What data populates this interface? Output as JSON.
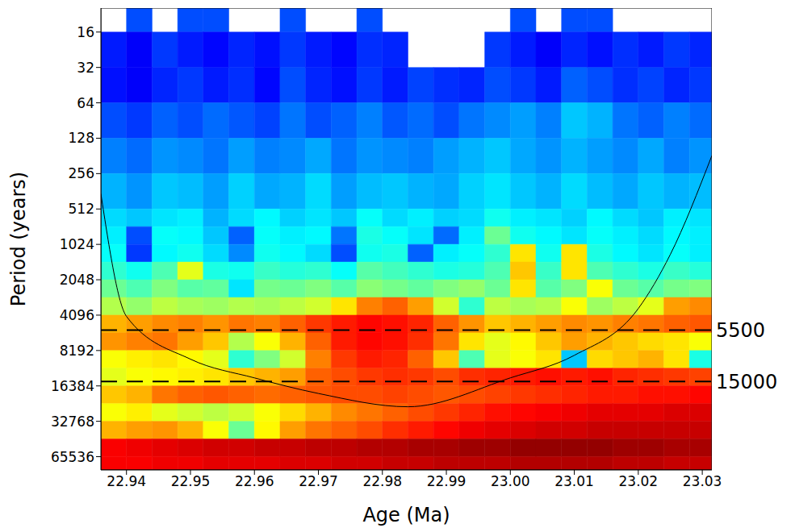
{
  "chart_data": {
    "type": "heatmap",
    "x_label": "Age (Ma)",
    "y_label": "Period (years)",
    "xlim": [
      22.936,
      23.0315
    ],
    "ylim": [
      10,
      85000
    ],
    "log": "y",
    "xticks": [
      22.94,
      22.95,
      22.96,
      22.97,
      22.98,
      22.99,
      {
        "value": 23,
        "label": "23.00"
      },
      23.01,
      23.02,
      23.03
    ],
    "yticks": [
      16,
      32,
      64,
      128,
      256,
      512,
      1024,
      2048,
      4096,
      8192,
      16384,
      32768,
      65536
    ],
    "heatmap": {
      "x_edges": [
        22.936,
        22.94,
        22.944,
        22.948,
        22.952,
        22.956,
        22.96,
        22.964,
        22.968,
        22.972,
        22.976,
        22.98,
        22.984,
        22.988,
        22.992,
        22.996,
        23.0,
        23.004,
        23.008,
        23.012,
        23.016,
        23.02,
        23.024,
        23.028,
        23.032
      ],
      "y_edges": [
        10,
        16,
        32,
        64,
        128,
        256,
        512,
        724,
        1024,
        1448,
        2048,
        2896,
        4096,
        5793,
        8192,
        11585,
        16384,
        23170,
        32768,
        46341,
        65536,
        85000
      ],
      "color_range": [
        0,
        10
      ],
      "values": [
        [
          null,
          2,
          null,
          2,
          2,
          null,
          null,
          2,
          null,
          null,
          2,
          null,
          null,
          null,
          null,
          null,
          2,
          null,
          2,
          2,
          null,
          null,
          null,
          null
        ],
        [
          1.5,
          1.2,
          1.8,
          1.5,
          1.3,
          1.6,
          1.4,
          1.8,
          1.5,
          1.3,
          1.7,
          1.6,
          null,
          null,
          null,
          1.8,
          1.5,
          1.2,
          1.6,
          1.4,
          1.7,
          1.5,
          1.8,
          1.6
        ],
        [
          1.4,
          1.2,
          1.6,
          1.8,
          1.5,
          1.7,
          1.3,
          2.0,
          1.6,
          1.4,
          1.8,
          1.5,
          1.9,
          1.7,
          1.6,
          2.0,
          1.8,
          1.5,
          2.2,
          2.0,
          1.7,
          1.9,
          1.6,
          1.8
        ],
        [
          2.0,
          1.8,
          2.2,
          2.0,
          2.3,
          2.1,
          1.9,
          2.4,
          2.0,
          2.2,
          2.5,
          2.1,
          2.3,
          2.0,
          2.4,
          2.6,
          2.8,
          2.5,
          3.2,
          3.0,
          2.4,
          2.2,
          2.5,
          2.3
        ],
        [
          2.5,
          2.3,
          2.7,
          2.6,
          2.4,
          2.8,
          2.5,
          2.6,
          2.9,
          2.4,
          2.7,
          2.6,
          2.5,
          2.8,
          3.0,
          3.2,
          2.9,
          2.7,
          3.0,
          2.8,
          2.6,
          2.9,
          2.5,
          2.7
        ],
        [
          3.0,
          2.7,
          3.2,
          3.1,
          2.8,
          3.3,
          2.9,
          3.0,
          3.4,
          2.8,
          3.1,
          3.2,
          3.0,
          2.9,
          3.3,
          3.5,
          3.2,
          3.0,
          3.4,
          3.1,
          2.9,
          3.2,
          3.0,
          3.1
        ],
        [
          3.4,
          3.2,
          3.5,
          3.6,
          3.0,
          3.4,
          3.7,
          3.3,
          3.5,
          3.2,
          3.8,
          3.4,
          3.6,
          3.3,
          3.4,
          3.9,
          3.6,
          3.5,
          3.3,
          3.7,
          3.4,
          3.2,
          3.6,
          3.5
        ],
        [
          3.6,
          2.0,
          3.8,
          3.7,
          3.2,
          2.2,
          3.8,
          3.6,
          3.7,
          2.4,
          4.0,
          3.8,
          3.5,
          2.3,
          3.6,
          4.8,
          3.9,
          3.7,
          3.5,
          3.8,
          3.6,
          3.4,
          3.7,
          3.6
        ],
        [
          3.8,
          1.8,
          3.7,
          3.9,
          3.4,
          2.6,
          3.9,
          3.7,
          3.4,
          2.0,
          3.9,
          4.0,
          2.2,
          3.6,
          3.8,
          4.2,
          6.5,
          3.9,
          6.5,
          4.0,
          3.7,
          3.5,
          3.8,
          3.6
        ],
        [
          4.2,
          3.9,
          4.5,
          6.0,
          4.0,
          3.9,
          4.3,
          4.1,
          4.2,
          3.8,
          4.6,
          4.4,
          4.2,
          4.0,
          4.1,
          4.5,
          6.8,
          4.3,
          6.5,
          4.5,
          4.2,
          4.0,
          4.3,
          4.1
        ],
        [
          4.8,
          4.5,
          5.0,
          4.6,
          4.7,
          3.5,
          4.9,
          4.8,
          5.0,
          4.6,
          5.1,
          4.9,
          4.7,
          5.0,
          5.2,
          4.8,
          6.5,
          4.6,
          5.0,
          6.2,
          4.8,
          4.6,
          4.9,
          5.0
        ],
        [
          5.5,
          5.2,
          5.6,
          5.4,
          5.3,
          5.5,
          5.4,
          5.6,
          5.8,
          6.5,
          7.5,
          7.8,
          7.2,
          5.8,
          4.2,
          5.6,
          5.4,
          5.5,
          6.2,
          5.3,
          5.6,
          6.0,
          7.2,
          7.4
        ],
        [
          7.0,
          7.2,
          7.4,
          7.5,
          7.3,
          7.6,
          7.5,
          7.8,
          8.2,
          8.5,
          8.7,
          8.6,
          8.4,
          7.8,
          7.3,
          6.8,
          7.0,
          7.2,
          7.4,
          7.3,
          7.5,
          7.6,
          7.8,
          7.9
        ],
        [
          7.3,
          7.5,
          7.6,
          7.2,
          6.8,
          5.5,
          6.2,
          7.0,
          7.8,
          8.5,
          8.7,
          8.6,
          8.3,
          7.6,
          6.5,
          6.0,
          6.3,
          6.8,
          7.2,
          7.0,
          6.8,
          6.6,
          6.5,
          6.2
        ],
        [
          6.2,
          6.4,
          6.5,
          6.3,
          6.0,
          4.2,
          5.0,
          5.8,
          7.5,
          8.2,
          8.5,
          8.4,
          7.8,
          6.8,
          4.5,
          6.0,
          6.2,
          6.5,
          3.2,
          6.6,
          6.8,
          7.0,
          6.5,
          4.0
        ],
        [
          6.0,
          6.2,
          6.3,
          6.4,
          6.5,
          6.8,
          7.0,
          7.2,
          7.8,
          8.0,
          8.2,
          8.3,
          8.2,
          8.0,
          8.3,
          8.4,
          8.5,
          8.6,
          8.5,
          8.6,
          8.4,
          8.3,
          8.2,
          8.1
        ],
        [
          6.8,
          7.0,
          7.6,
          7.8,
          7.9,
          7.8,
          7.7,
          7.8,
          7.9,
          8.0,
          8.0,
          8.1,
          8.0,
          7.9,
          8.0,
          8.1,
          8.2,
          8.3,
          8.4,
          8.5,
          8.5,
          8.6,
          8.6,
          8.7
        ],
        [
          6.2,
          6.4,
          6.0,
          5.8,
          5.6,
          5.8,
          6.2,
          6.6,
          7.0,
          7.4,
          7.6,
          7.8,
          8.0,
          8.2,
          8.4,
          8.6,
          8.7,
          8.8,
          8.9,
          9.0,
          9.0,
          9.0,
          9.1,
          9.1
        ],
        [
          7.0,
          7.2,
          7.3,
          7.0,
          6.2,
          4.8,
          6.3,
          7.2,
          7.6,
          7.8,
          8.0,
          8.3,
          8.5,
          8.7,
          8.9,
          9.0,
          9.1,
          9.2,
          9.2,
          9.3,
          9.3,
          9.3,
          9.3,
          9.3
        ],
        [
          8.8,
          8.9,
          9.0,
          9.1,
          9.2,
          9.2,
          9.3,
          9.3,
          9.4,
          9.4,
          9.5,
          9.5,
          9.6,
          9.6,
          9.7,
          9.7,
          9.8,
          9.8,
          9.8,
          9.8,
          9.7,
          9.7,
          9.6,
          9.6
        ],
        [
          8.8,
          8.8,
          8.9,
          8.9,
          9.0,
          9.0,
          9.0,
          9.1,
          9.1,
          9.2,
          9.2,
          9.3,
          9.3,
          9.4,
          9.4,
          9.4,
          9.5,
          9.5,
          9.5,
          9.5,
          9.4,
          9.4,
          9.3,
          9.3
        ]
      ]
    },
    "reference_lines": [
      {
        "value": 5500,
        "label": "5500",
        "line_style": "dashed"
      },
      {
        "value": 15000,
        "label": "15000",
        "line_style": "dashed"
      }
    ],
    "cone_of_influence": {
      "color": "#000000",
      "x": [
        22.936,
        22.94,
        22.95,
        22.96,
        22.97,
        22.984,
        23.0,
        23.01,
        23.02,
        23.025,
        23.0315
      ],
      "y": [
        380,
        4200,
        9700,
        14000,
        19000,
        24650,
        14000,
        9000,
        3600,
        1250,
        180
      ]
    }
  }
}
